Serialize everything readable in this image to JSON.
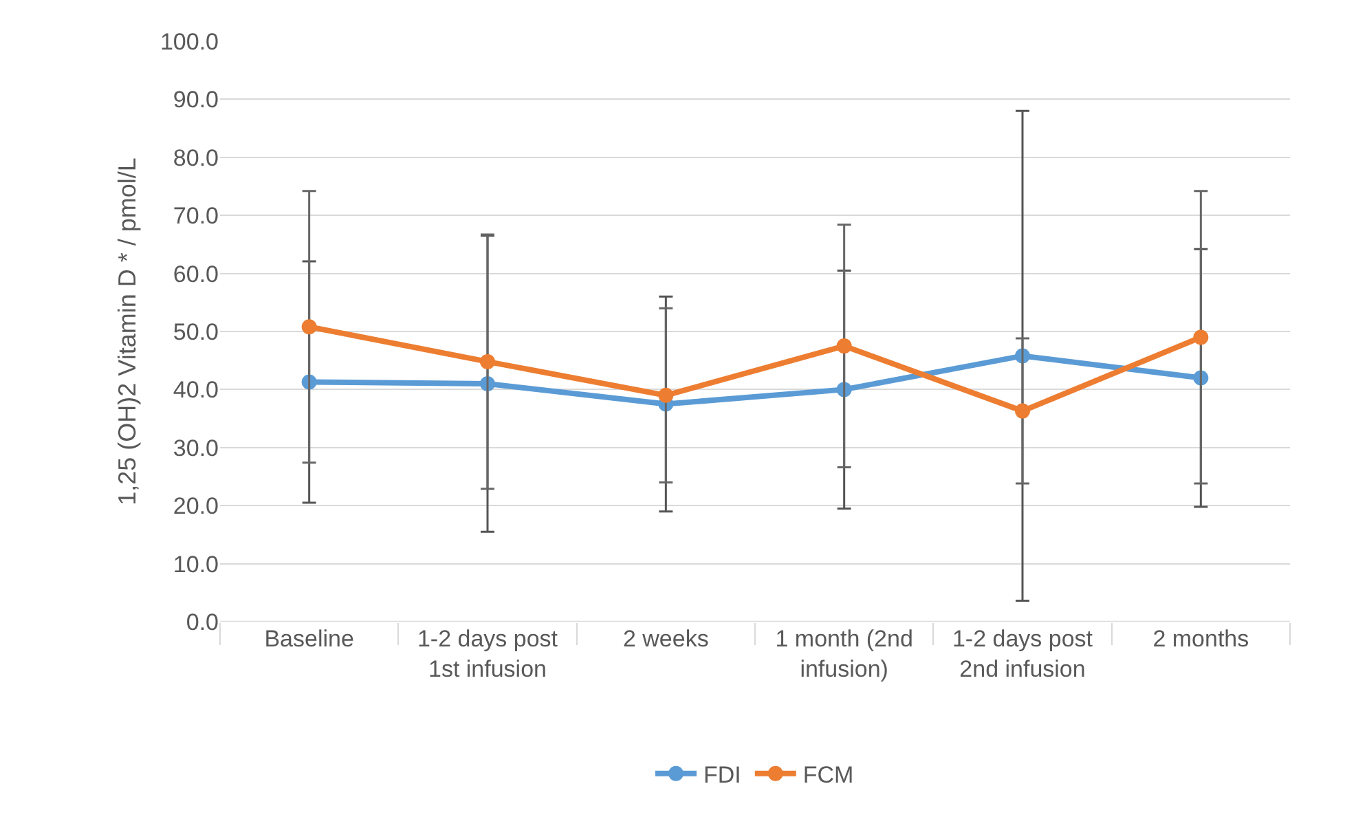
{
  "chart_data": {
    "type": "line",
    "ylabel": "1,25 (OH)2 Vitamin D * / pmol/L",
    "categories": [
      "Baseline",
      "1-2 days post 1st infusion",
      "2 weeks",
      "1 month (2nd infusion)",
      "1-2 days post 2nd infusion",
      "2 months"
    ],
    "series": [
      {
        "name": "FDI",
        "color": "#5b9bd5",
        "values": [
          41.3,
          41.0,
          37.5,
          40.0,
          45.8,
          42.0
        ],
        "errors": [
          20.8,
          25.5,
          18.5,
          20.5,
          42.2,
          22.2
        ]
      },
      {
        "name": "FCM",
        "color": "#ed7d31",
        "values": [
          50.8,
          44.8,
          39.0,
          47.5,
          36.3,
          49.0
        ],
        "errors": [
          23.4,
          21.9,
          15.0,
          20.9,
          12.5,
          25.2
        ]
      }
    ],
    "ylim": [
      0,
      100
    ],
    "yticks": [
      {
        "value": 0,
        "label": "0.0"
      },
      {
        "value": 10,
        "label": "10.0"
      },
      {
        "value": 20,
        "label": "20.0"
      },
      {
        "value": 30,
        "label": "30.0"
      },
      {
        "value": 40,
        "label": "40.0"
      },
      {
        "value": 50,
        "label": "50.0"
      },
      {
        "value": 60,
        "label": "60.0"
      },
      {
        "value": 70,
        "label": "70.0"
      },
      {
        "value": 80,
        "label": "80.0"
      },
      {
        "value": 90,
        "label": "90.0"
      },
      {
        "value": 100,
        "label": "100.0"
      }
    ],
    "grid": "y",
    "legend": "bottom",
    "marker": "circle",
    "line_style": "solid"
  }
}
